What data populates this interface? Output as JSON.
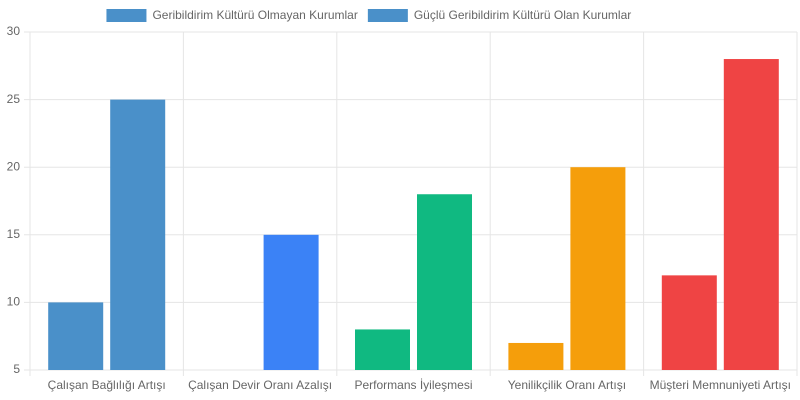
{
  "chart_data": {
    "type": "bar",
    "categories": [
      "Çalışan Bağlılığı Artışı",
      "Çalışan Devir Oranı Azalışı",
      "Performans İyileşmesi",
      "Yenilikçilik Oranı Artışı",
      "Müşteri Memnuniyeti Artışı"
    ],
    "series": [
      {
        "name": "Geribildirim Kültürü Olmayan Kurumlar",
        "color": "#4a90c9",
        "colors": [
          "#4a90c9",
          "#3b82f6",
          "#10b981",
          "#f59e0b",
          "#ef4444"
        ],
        "values": [
          10,
          5,
          8,
          7,
          12
        ]
      },
      {
        "name": "Güçlü Geribildirim Kültürü Olan Kurumlar",
        "color": "#4a90c9",
        "colors": [
          "#4a90c9",
          "#3b82f6",
          "#10b981",
          "#f59e0b",
          "#ef4444"
        ],
        "values": [
          25,
          15,
          18,
          20,
          28
        ]
      }
    ],
    "ylim": [
      5,
      30
    ],
    "yticks": [
      5,
      10,
      15,
      20,
      25,
      30
    ],
    "grid": true,
    "legend": "top"
  }
}
